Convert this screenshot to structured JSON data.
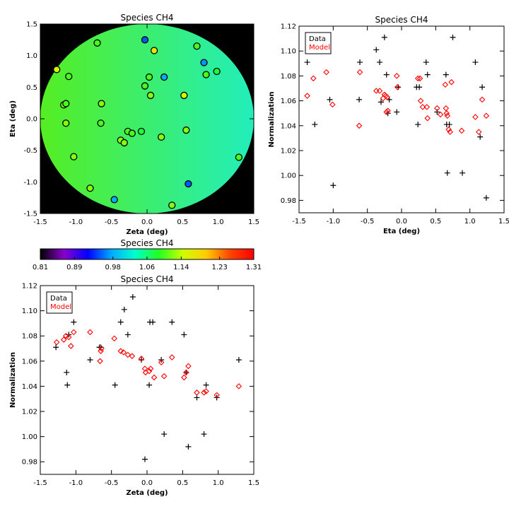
{
  "chart_data": [
    {
      "type": "scatter",
      "subtype": "map",
      "title": "Species CH4",
      "xlabel": "Zeta (deg)",
      "ylabel": "Eta (deg)",
      "xlim": [
        -1.5,
        1.5
      ],
      "ylim": [
        -1.5,
        1.5
      ],
      "xticks": [
        -1.5,
        -1.0,
        -0.5,
        0.0,
        0.5,
        1.0,
        1.5
      ],
      "xticklabels": [
        "-1.5",
        "-1.0",
        "-0.5",
        "0.0",
        "0.5",
        "1.0",
        "1.5"
      ],
      "yticks": [
        -1.5,
        -1.0,
        -0.5,
        0.0,
        0.5,
        1.0,
        1.5
      ],
      "yticklabels": [
        "-1.5",
        "-1.0",
        "-0.5",
        "0.0",
        "0.5",
        "1.0",
        "1.5"
      ],
      "background": "#000000",
      "field_colors": [
        "#55ee22",
        "#22eebb"
      ],
      "points": [
        {
          "x": -0.7,
          "y": 1.2,
          "v": 1.1
        },
        {
          "x": -0.03,
          "y": 1.25,
          "v": 0.95
        },
        {
          "x": 0.1,
          "y": 1.08,
          "v": 1.17
        },
        {
          "x": 0.7,
          "y": 1.15,
          "v": 1.1
        },
        {
          "x": 0.8,
          "y": 0.89,
          "v": 0.97
        },
        {
          "x": 0.83,
          "y": 0.7,
          "v": 1.1
        },
        {
          "x": 0.98,
          "y": 0.75,
          "v": 1.08
        },
        {
          "x": -1.27,
          "y": 0.78,
          "v": 1.15
        },
        {
          "x": -1.1,
          "y": 0.67,
          "v": 1.1
        },
        {
          "x": 0.03,
          "y": 0.66,
          "v": 1.1
        },
        {
          "x": 0.24,
          "y": 0.66,
          "v": 0.98
        },
        {
          "x": -0.03,
          "y": 0.52,
          "v": 1.1
        },
        {
          "x": 0.05,
          "y": 0.37,
          "v": 1.12
        },
        {
          "x": 0.52,
          "y": 0.37,
          "v": 1.15
        },
        {
          "x": -1.17,
          "y": 0.22,
          "v": 1.12
        },
        {
          "x": -1.14,
          "y": 0.24,
          "v": 1.1
        },
        {
          "x": -0.64,
          "y": 0.24,
          "v": 1.12
        },
        {
          "x": -1.14,
          "y": -0.07,
          "v": 1.12
        },
        {
          "x": -0.65,
          "y": -0.07,
          "v": 1.1
        },
        {
          "x": -0.27,
          "y": -0.2,
          "v": 1.1
        },
        {
          "x": -0.21,
          "y": -0.23,
          "v": 1.1
        },
        {
          "x": -0.08,
          "y": -0.2,
          "v": 1.08
        },
        {
          "x": 0.55,
          "y": -0.18,
          "v": 1.12
        },
        {
          "x": -0.37,
          "y": -0.34,
          "v": 1.12
        },
        {
          "x": -0.32,
          "y": -0.38,
          "v": 1.12
        },
        {
          "x": 0.2,
          "y": -0.29,
          "v": 1.12
        },
        {
          "x": -1.03,
          "y": -0.6,
          "v": 1.12
        },
        {
          "x": 1.29,
          "y": -0.61,
          "v": 1.1
        },
        {
          "x": 0.58,
          "y": -1.03,
          "v": 0.95
        },
        {
          "x": -0.8,
          "y": -1.1,
          "v": 1.12
        },
        {
          "x": -0.46,
          "y": -1.28,
          "v": 0.98
        },
        {
          "x": 0.35,
          "y": -1.37,
          "v": 1.12
        }
      ]
    },
    {
      "type": "colorbar",
      "title": "Species CH4",
      "tick_values": [
        0.81,
        0.89,
        0.98,
        1.06,
        1.14,
        1.23,
        1.31
      ],
      "tick_labels": [
        "0.81",
        "0.89",
        "0.98",
        "1.06",
        "1.14",
        "1.23",
        "1.31"
      ],
      "range": [
        0.81,
        1.31
      ],
      "colormap": [
        "#000000",
        "#8800cc",
        "#0000ff",
        "#00aaff",
        "#00ffcc",
        "#22ff22",
        "#ccff00",
        "#ffcc00",
        "#ff4400",
        "#ff0000"
      ]
    },
    {
      "type": "scatter",
      "title": "Species CH4",
      "xlabel": "Eta (deg)",
      "ylabel": "Normalization",
      "xlim": [
        -1.5,
        1.5
      ],
      "ylim": [
        0.97,
        1.12
      ],
      "xticks": [
        -1.5,
        -1.0,
        -0.5,
        0.0,
        0.5,
        1.0,
        1.5
      ],
      "xticklabels": [
        "-1.5",
        "-1.0",
        "-0.5",
        "0.0",
        "0.5",
        "1.0",
        "1.5"
      ],
      "yticks": [
        0.98,
        1.0,
        1.02,
        1.04,
        1.06,
        1.08,
        1.1,
        1.12
      ],
      "yticklabels": [
        "0.98",
        "1.00",
        "1.02",
        "1.04",
        "1.06",
        "1.08",
        "1.10",
        "1.12"
      ],
      "legend": {
        "position": "top-left",
        "entries": [
          "Data",
          "Model"
        ],
        "colors": [
          "#000000",
          "#ff0000"
        ]
      },
      "series": [
        {
          "name": "Data",
          "marker": "plus",
          "color": "#000000",
          "points": [
            [
              -1.38,
              1.091
            ],
            [
              -1.27,
              1.041
            ],
            [
              -1.05,
              1.061
            ],
            [
              -1.0,
              0.992
            ],
            [
              -0.62,
              1.061
            ],
            [
              -0.61,
              1.091
            ],
            [
              -0.37,
              1.101
            ],
            [
              -0.32,
              1.091
            ],
            [
              -0.3,
              1.059
            ],
            [
              -0.25,
              1.111
            ],
            [
              -0.22,
              1.081
            ],
            [
              -0.2,
              1.05
            ],
            [
              -0.18,
              1.061
            ],
            [
              -0.07,
              1.051
            ],
            [
              -0.05,
              1.071
            ],
            [
              0.22,
              1.071
            ],
            [
              0.24,
              1.041
            ],
            [
              0.26,
              1.071
            ],
            [
              0.36,
              1.091
            ],
            [
              0.38,
              1.081
            ],
            [
              0.52,
              1.051
            ],
            [
              0.65,
              1.081
            ],
            [
              0.66,
              1.041
            ],
            [
              0.67,
              1.002
            ],
            [
              0.7,
              1.041
            ],
            [
              0.75,
              1.111
            ],
            [
              0.89,
              1.002
            ],
            [
              1.08,
              1.091
            ],
            [
              1.15,
              1.031
            ],
            [
              1.18,
              1.071
            ],
            [
              1.24,
              0.982
            ]
          ]
        },
        {
          "name": "Model",
          "marker": "diamond",
          "color": "#ff0000",
          "points": [
            [
              -1.38,
              1.064
            ],
            [
              -1.29,
              1.078
            ],
            [
              -1.1,
              1.083
            ],
            [
              -1.01,
              1.057
            ],
            [
              -0.62,
              1.04
            ],
            [
              -0.61,
              1.083
            ],
            [
              -0.37,
              1.068
            ],
            [
              -0.32,
              1.068
            ],
            [
              -0.27,
              1.062
            ],
            [
              -0.25,
              1.065
            ],
            [
              -0.23,
              1.064
            ],
            [
              -0.22,
              1.051
            ],
            [
              -0.21,
              1.063
            ],
            [
              -0.2,
              1.052
            ],
            [
              -0.07,
              1.08
            ],
            [
              -0.06,
              1.071
            ],
            [
              0.24,
              1.078
            ],
            [
              0.27,
              1.078
            ],
            [
              0.28,
              1.06
            ],
            [
              0.31,
              1.055
            ],
            [
              0.37,
              1.055
            ],
            [
              0.38,
              1.046
            ],
            [
              0.52,
              1.054
            ],
            [
              0.57,
              1.049
            ],
            [
              0.64,
              1.073
            ],
            [
              0.65,
              1.054
            ],
            [
              0.66,
              1.05
            ],
            [
              0.67,
              1.048
            ],
            [
              0.69,
              1.037
            ],
            [
              0.71,
              1.035
            ],
            [
              0.73,
              1.075
            ],
            [
              0.88,
              1.036
            ],
            [
              1.08,
              1.047
            ],
            [
              1.13,
              1.035
            ],
            [
              1.18,
              1.061
            ],
            [
              1.24,
              1.048
            ]
          ]
        }
      ]
    },
    {
      "type": "scatter",
      "title": "Species CH4",
      "xlabel": "Zeta (deg)",
      "ylabel": "Normalization",
      "xlim": [
        -1.5,
        1.5
      ],
      "ylim": [
        0.97,
        1.12
      ],
      "xticks": [
        -1.5,
        -1.0,
        -0.5,
        0.0,
        0.5,
        1.0,
        1.5
      ],
      "xticklabels": [
        "-1.5",
        "-1.0",
        "-0.5",
        "0.0",
        "0.5",
        "1.0",
        "1.5"
      ],
      "yticks": [
        0.98,
        1.0,
        1.02,
        1.04,
        1.06,
        1.08,
        1.1,
        1.12
      ],
      "yticklabels": [
        "0.98",
        "1.00",
        "1.02",
        "1.04",
        "1.06",
        "1.08",
        "1.10",
        "1.12"
      ],
      "legend": {
        "position": "top-left",
        "entries": [
          "Data",
          "Model"
        ],
        "colors": [
          "#000000",
          "#ff0000"
        ]
      },
      "series": [
        {
          "name": "Data",
          "marker": "plus",
          "color": "#000000",
          "points": [
            [
              -1.28,
              1.071
            ],
            [
              -1.13,
              1.051
            ],
            [
              -1.12,
              1.041
            ],
            [
              -1.1,
              1.081
            ],
            [
              -1.03,
              1.091
            ],
            [
              -0.8,
              1.061
            ],
            [
              -0.67,
              1.071
            ],
            [
              -0.65,
              1.071
            ],
            [
              -0.45,
              1.041
            ],
            [
              -0.37,
              1.091
            ],
            [
              -0.32,
              1.101
            ],
            [
              -0.27,
              1.081
            ],
            [
              -0.2,
              1.111
            ],
            [
              -0.08,
              1.061
            ],
            [
              -0.03,
              0.982
            ],
            [
              0.03,
              1.041
            ],
            [
              0.04,
              1.091
            ],
            [
              0.08,
              1.091
            ],
            [
              0.2,
              1.061
            ],
            [
              0.24,
              1.002
            ],
            [
              0.35,
              1.091
            ],
            [
              0.52,
              1.081
            ],
            [
              0.55,
              1.051
            ],
            [
              0.58,
              0.992
            ],
            [
              0.7,
              1.031
            ],
            [
              0.8,
              1.002
            ],
            [
              0.83,
              1.041
            ],
            [
              0.98,
              1.031
            ],
            [
              1.29,
              1.061
            ]
          ]
        },
        {
          "name": "Model",
          "marker": "diamond",
          "color": "#ff0000",
          "points": [
            [
              -1.27,
              1.075
            ],
            [
              -1.17,
              1.077
            ],
            [
              -1.14,
              1.08
            ],
            [
              -1.1,
              1.079
            ],
            [
              -1.07,
              1.072
            ],
            [
              -1.03,
              1.083
            ],
            [
              -0.8,
              1.083
            ],
            [
              -0.66,
              1.06
            ],
            [
              -0.65,
              1.068
            ],
            [
              -0.64,
              1.07
            ],
            [
              -0.46,
              1.078
            ],
            [
              -0.37,
              1.068
            ],
            [
              -0.33,
              1.067
            ],
            [
              -0.27,
              1.065
            ],
            [
              -0.21,
              1.064
            ],
            [
              -0.08,
              1.062
            ],
            [
              -0.03,
              1.054
            ],
            [
              -0.02,
              1.051
            ],
            [
              0.03,
              1.052
            ],
            [
              0.05,
              1.054
            ],
            [
              0.1,
              1.047
            ],
            [
              0.2,
              1.059
            ],
            [
              0.24,
              1.048
            ],
            [
              0.35,
              1.063
            ],
            [
              0.52,
              1.047
            ],
            [
              0.55,
              1.051
            ],
            [
              0.58,
              1.056
            ],
            [
              0.7,
              1.035
            ],
            [
              0.8,
              1.035
            ],
            [
              0.83,
              1.036
            ],
            [
              0.98,
              1.033
            ],
            [
              1.29,
              1.04
            ]
          ]
        }
      ]
    }
  ]
}
